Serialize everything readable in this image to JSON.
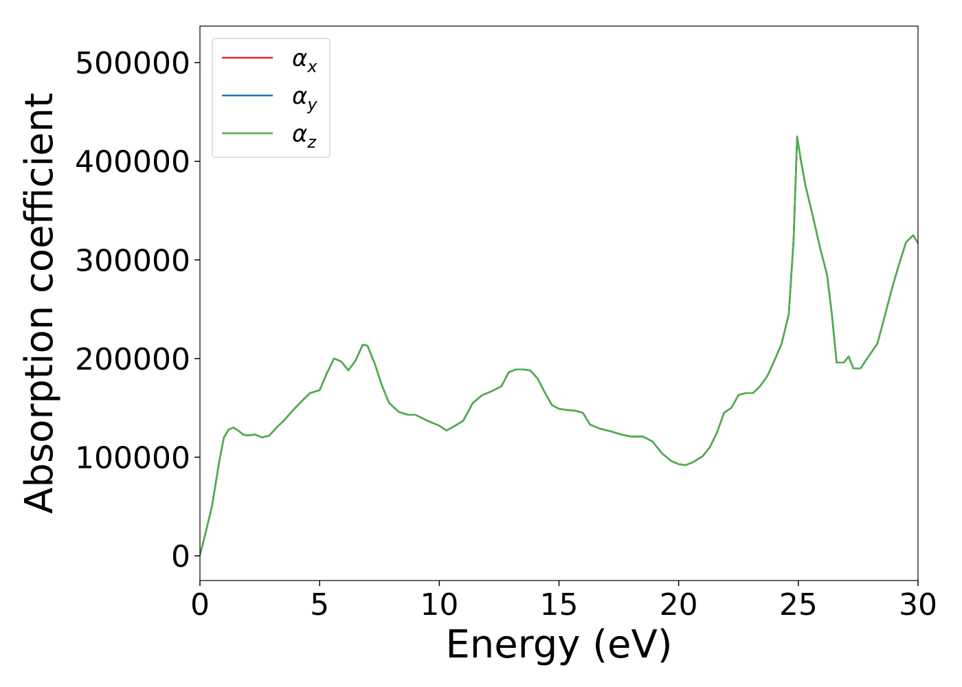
{
  "chart_data": {
    "type": "line",
    "xlabel": "Energy (eV)",
    "ylabel": "Absorption coefficient",
    "xlim": [
      0,
      30
    ],
    "ylim": [
      -25000,
      537000
    ],
    "xticks": [
      0,
      5,
      10,
      15,
      20,
      25,
      30
    ],
    "yticks": [
      0,
      100000,
      200000,
      300000,
      400000,
      500000
    ],
    "grid": false,
    "legend_position": "top-left",
    "series": [
      {
        "name": "α",
        "subscript": "x",
        "color": "#d62728"
      },
      {
        "name": "α",
        "subscript": "y",
        "color": "#1f77b4"
      },
      {
        "name": "α",
        "subscript": "z",
        "color": "#4daf4a"
      }
    ],
    "x": [
      0,
      0.2,
      0.5,
      0.8,
      1.0,
      1.2,
      1.4,
      1.6,
      1.8,
      2.0,
      2.3,
      2.6,
      2.9,
      3.2,
      3.5,
      3.9,
      4.3,
      4.6,
      5.0,
      5.3,
      5.6,
      5.9,
      6.2,
      6.5,
      6.8,
      7.0,
      7.3,
      7.6,
      7.9,
      8.3,
      8.7,
      9.0,
      9.5,
      10.0,
      10.3,
      10.6,
      11.0,
      11.4,
      11.8,
      12.2,
      12.6,
      12.9,
      13.2,
      13.5,
      13.8,
      14.1,
      14.4,
      14.7,
      15.0,
      15.3,
      15.7,
      16.0,
      16.3,
      16.7,
      17.2,
      17.6,
      18.0,
      18.5,
      18.9,
      19.3,
      19.7,
      20.0,
      20.3,
      20.6,
      21.0,
      21.3,
      21.6,
      21.9,
      22.2,
      22.5,
      22.8,
      23.1,
      23.4,
      23.7,
      24.0,
      24.3,
      24.6,
      24.8,
      24.95,
      25.1,
      25.3,
      25.6,
      25.9,
      26.2,
      26.4,
      26.6,
      26.9,
      27.1,
      27.3,
      27.6,
      27.9,
      28.3,
      28.6,
      28.9,
      29.2,
      29.5,
      29.8,
      30.0
    ],
    "values": [
      1000,
      20000,
      50000,
      95000,
      120000,
      128000,
      130000,
      127000,
      123000,
      122000,
      123000,
      120000,
      122000,
      130000,
      137000,
      148000,
      158000,
      165000,
      168000,
      185000,
      200000,
      197000,
      188000,
      198000,
      214000,
      213000,
      195000,
      173000,
      155000,
      146000,
      143000,
      143000,
      137000,
      132000,
      127000,
      131000,
      137000,
      155000,
      163000,
      167000,
      172000,
      186000,
      189000,
      189000,
      188000,
      180000,
      166000,
      153000,
      149000,
      148000,
      147000,
      145000,
      133000,
      129000,
      126000,
      123000,
      121000,
      121000,
      116000,
      104000,
      96000,
      93000,
      92000,
      95000,
      101000,
      110000,
      125000,
      145000,
      150000,
      163000,
      165000,
      165000,
      172000,
      182000,
      198000,
      215000,
      245000,
      320000,
      425000,
      402000,
      375000,
      345000,
      313000,
      285000,
      245000,
      196000,
      196000,
      202000,
      190000,
      190000,
      201000,
      215000,
      242000,
      270000,
      295000,
      318000,
      325000,
      317000
    ]
  }
}
